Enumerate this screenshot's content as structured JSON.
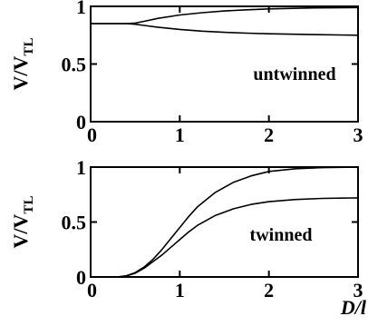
{
  "chart_data": [
    {
      "type": "line",
      "ylabel_main": "V/V",
      "ylabel_sub": "TL",
      "xlabel": "",
      "annotation": "untwinned",
      "xlim": [
        0,
        3
      ],
      "ylim": [
        0,
        1
      ],
      "x_ticks": [
        0,
        1,
        2,
        3
      ],
      "x_tick_labels": [
        "0",
        "1",
        "2",
        "3"
      ],
      "y_ticks": [
        0,
        0.5,
        1
      ],
      "y_tick_labels": [
        "0",
        "0.5",
        "1"
      ],
      "series": [
        {
          "x": [
            0,
            0.25,
            0.4,
            0.5,
            0.6,
            0.75,
            1.0,
            1.25,
            1.5,
            1.75,
            2.0,
            2.5,
            3.0
          ],
          "y": [
            0.85,
            0.85,
            0.85,
            0.855,
            0.87,
            0.895,
            0.925,
            0.945,
            0.96,
            0.97,
            0.978,
            0.987,
            0.99
          ]
        },
        {
          "x": [
            0,
            0.25,
            0.4,
            0.5,
            0.6,
            0.75,
            1.0,
            1.25,
            1.5,
            1.75,
            2.0,
            2.5,
            3.0
          ],
          "y": [
            0.85,
            0.85,
            0.85,
            0.845,
            0.835,
            0.82,
            0.8,
            0.785,
            0.775,
            0.768,
            0.762,
            0.755,
            0.75
          ]
        }
      ]
    },
    {
      "type": "line",
      "ylabel_main": "V/V",
      "ylabel_sub": "TL",
      "xlabel": "D/l",
      "annotation": "twinned",
      "xlim": [
        0,
        3
      ],
      "ylim": [
        0,
        1
      ],
      "x_ticks": [
        0,
        1,
        2,
        3
      ],
      "x_tick_labels": [
        "0",
        "1",
        "2",
        "3"
      ],
      "y_ticks": [
        0,
        0.5,
        1
      ],
      "y_tick_labels": [
        "0",
        "0.5",
        "1"
      ],
      "series": [
        {
          "x": [
            0,
            0.3,
            0.4,
            0.5,
            0.6,
            0.7,
            0.8,
            0.9,
            1.0,
            1.1,
            1.2,
            1.4,
            1.6,
            1.8,
            2.0,
            2.3,
            2.6,
            3.0
          ],
          "y": [
            0,
            0,
            0.01,
            0.04,
            0.09,
            0.16,
            0.25,
            0.35,
            0.45,
            0.55,
            0.64,
            0.77,
            0.86,
            0.92,
            0.96,
            0.985,
            0.995,
            1.0
          ]
        },
        {
          "x": [
            0,
            0.3,
            0.4,
            0.5,
            0.6,
            0.7,
            0.8,
            0.9,
            1.0,
            1.1,
            1.2,
            1.4,
            1.6,
            1.8,
            2.0,
            2.3,
            2.6,
            3.0
          ],
          "y": [
            0,
            0,
            0.01,
            0.035,
            0.08,
            0.14,
            0.2,
            0.27,
            0.34,
            0.41,
            0.47,
            0.56,
            0.62,
            0.66,
            0.685,
            0.705,
            0.715,
            0.72
          ]
        }
      ]
    }
  ]
}
